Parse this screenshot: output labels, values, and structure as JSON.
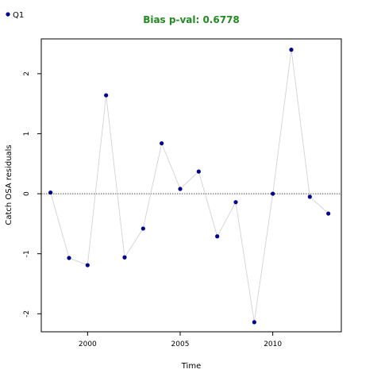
{
  "chart_data": {
    "type": "scatter",
    "title": "Bias p-val: 0.6778",
    "title_color": "#228b22",
    "xlabel": "Time",
    "ylabel": "Catch OSA residuals",
    "xlim": [
      1997.5,
      2013.7
    ],
    "ylim": [
      -2.3,
      2.58
    ],
    "xticks": [
      2000,
      2005,
      2010
    ],
    "yticks": [
      -2,
      -1,
      0,
      1,
      2
    ],
    "reference_line": 0,
    "grid": false,
    "legend": {
      "position": "top-left",
      "entries": [
        "Q1"
      ]
    },
    "series": [
      {
        "name": "Q1",
        "color": "#00008b",
        "line_color": "#d3d3d3",
        "x": [
          1998,
          1999,
          2000,
          2001,
          2002,
          2003,
          2004,
          2005,
          2006,
          2007,
          2008,
          2009,
          2010,
          2011,
          2012,
          2013
        ],
        "y": [
          0.02,
          -1.07,
          -1.19,
          1.64,
          -1.06,
          -0.58,
          0.84,
          0.08,
          0.37,
          -0.71,
          -0.14,
          -2.14,
          0.0,
          2.4,
          -0.05,
          -0.33
        ]
      }
    ]
  }
}
